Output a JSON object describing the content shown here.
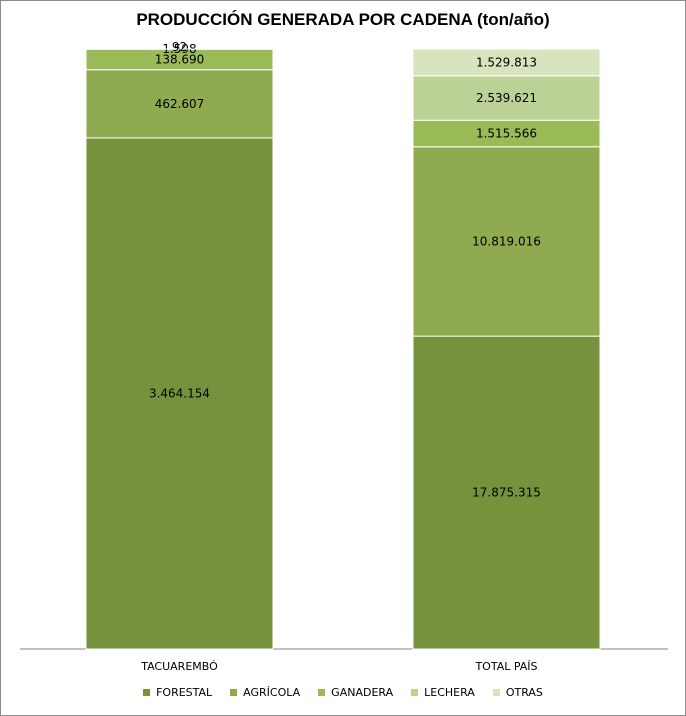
{
  "chart_data": {
    "type": "bar",
    "stacked": true,
    "title": "PRODUCCIÓN GENERADA POR CADENA (ton/año)",
    "categories": [
      "TACUAREMBÓ",
      "TOTAL PAÍS"
    ],
    "series": [
      {
        "name": "FORESTAL",
        "color": "#76923c",
        "values": [
          3464154,
          17875315
        ],
        "labels": [
          "3.464.154",
          "17.875.315"
        ]
      },
      {
        "name": "AGRÍCOLA",
        "color": "#8faa4f",
        "values": [
          462607,
          10819016
        ],
        "labels": [
          "462.607",
          "10.819.016"
        ]
      },
      {
        "name": "GANADERA",
        "color": "#9bbb59",
        "values": [
          138690,
          1515566
        ],
        "labels": [
          "138.690",
          "1.515.566"
        ]
      },
      {
        "name": "LECHERA",
        "color": "#bcd195",
        "values": [
          1598,
          2539621
        ],
        "labels": [
          "1.598",
          "2.539.621"
        ]
      },
      {
        "name": "OTRAS",
        "color": "#d7e4bd",
        "values": [
          92,
          1529813
        ],
        "labels": [
          "92",
          "1.529.813"
        ]
      }
    ],
    "percent_stacked": true,
    "legend_position": "bottom",
    "grid": false
  }
}
